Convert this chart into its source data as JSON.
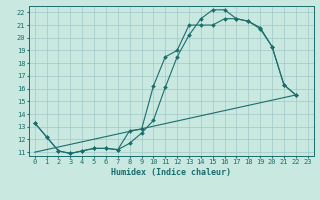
{
  "xlabel": "Humidex (Indice chaleur)",
  "bg_color": "#c8e8e0",
  "grid_color": "#a0c8c8",
  "line_color": "#1a6e6e",
  "xlim": [
    -0.5,
    23.5
  ],
  "ylim": [
    10.7,
    22.5
  ],
  "xticks": [
    0,
    1,
    2,
    3,
    4,
    5,
    6,
    7,
    8,
    9,
    10,
    11,
    12,
    13,
    14,
    15,
    16,
    17,
    18,
    19,
    20,
    21,
    22,
    23
  ],
  "yticks": [
    11,
    12,
    13,
    14,
    15,
    16,
    17,
    18,
    19,
    20,
    21,
    22
  ],
  "line1_x": [
    0,
    1,
    2,
    3,
    4,
    5,
    6,
    7,
    8,
    9,
    10,
    11,
    12,
    13,
    14,
    15,
    16,
    17,
    18,
    19,
    20,
    21,
    22
  ],
  "line1_y": [
    13.3,
    12.2,
    11.1,
    10.9,
    11.1,
    11.3,
    11.3,
    11.2,
    11.7,
    12.5,
    13.5,
    16.1,
    18.5,
    20.2,
    21.5,
    22.2,
    22.2,
    21.5,
    21.3,
    20.8,
    19.3,
    16.3,
    15.5
  ],
  "line2_x": [
    0,
    1,
    2,
    3,
    4,
    5,
    6,
    7,
    8,
    9,
    10,
    11,
    12,
    13,
    14,
    15,
    16,
    17,
    18,
    19,
    20,
    21,
    22
  ],
  "line2_y": [
    13.3,
    12.2,
    11.1,
    10.9,
    11.1,
    11.3,
    11.3,
    11.2,
    12.7,
    12.8,
    16.2,
    18.5,
    19.0,
    21.0,
    21.0,
    21.0,
    21.5,
    21.5,
    21.3,
    20.7,
    19.3,
    16.3,
    15.5
  ],
  "line3_x": [
    0,
    22
  ],
  "line3_y": [
    11.0,
    15.5
  ],
  "marker_size": 2.0,
  "line_width": 0.8,
  "tick_fontsize": 5.0,
  "xlabel_fontsize": 6.0
}
